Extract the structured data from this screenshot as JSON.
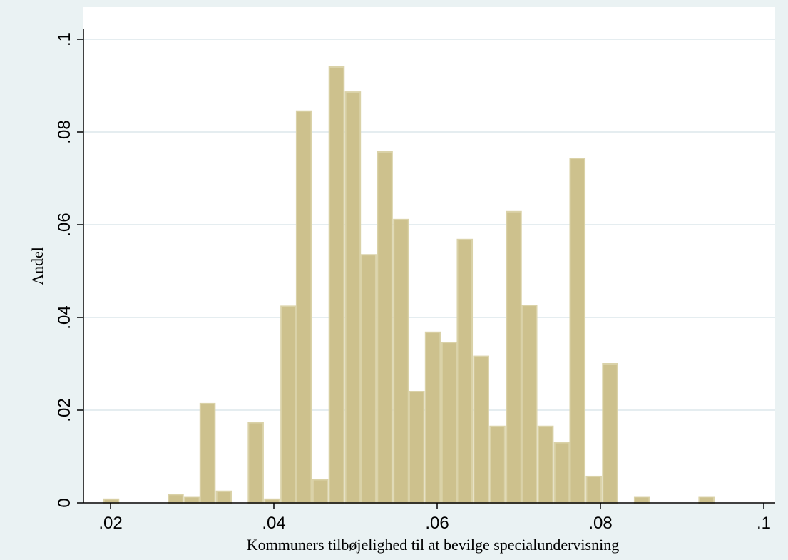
{
  "chart_data": {
    "type": "bar",
    "title": "",
    "xlabel": "Kommuners tilbøjelighed til at bevilge specialundervisning",
    "ylabel": "Andel",
    "xlim": [
      0.016,
      0.1
    ],
    "ylim": [
      0,
      0.1
    ],
    "xticks": [
      0.02,
      0.04,
      0.06,
      0.08,
      0.1
    ],
    "xtick_labels": [
      ".02",
      ".04",
      ".06",
      ".08",
      ".1"
    ],
    "yticks": [
      0,
      0.02,
      0.04,
      0.06,
      0.08,
      0.1
    ],
    "ytick_labels": [
      "0",
      ".02",
      ".04",
      ".06",
      ".08",
      ".1"
    ],
    "grid": true,
    "bin_width": 0.00197,
    "bins_start": [
      0.0191,
      0.027,
      0.029,
      0.0309,
      0.0329,
      0.0368,
      0.0388,
      0.0408,
      0.0427,
      0.0447,
      0.0467,
      0.0487,
      0.0506,
      0.0526,
      0.0546,
      0.0565,
      0.0585,
      0.0605,
      0.0624,
      0.0644,
      0.0664,
      0.0684,
      0.0703,
      0.0723,
      0.0743,
      0.0762,
      0.0782,
      0.0802,
      0.0841,
      0.092
    ],
    "values": [
      0.0008,
      0.0018,
      0.0013,
      0.0214,
      0.0025,
      0.0173,
      0.0008,
      0.0424,
      0.0845,
      0.005,
      0.094,
      0.0886,
      0.0535,
      0.0757,
      0.0611,
      0.024,
      0.0368,
      0.0346,
      0.0568,
      0.0316,
      0.0165,
      0.0628,
      0.0426,
      0.0165,
      0.013,
      0.0743,
      0.0057,
      0.03,
      0.0013,
      0.0013
    ],
    "bar_color": "#cdc18d",
    "bar_edge_color": "#dad2a8",
    "plot_background": "#ffffff",
    "outer_background": "#eaf2f3",
    "grid_color": "#e5edf0"
  }
}
